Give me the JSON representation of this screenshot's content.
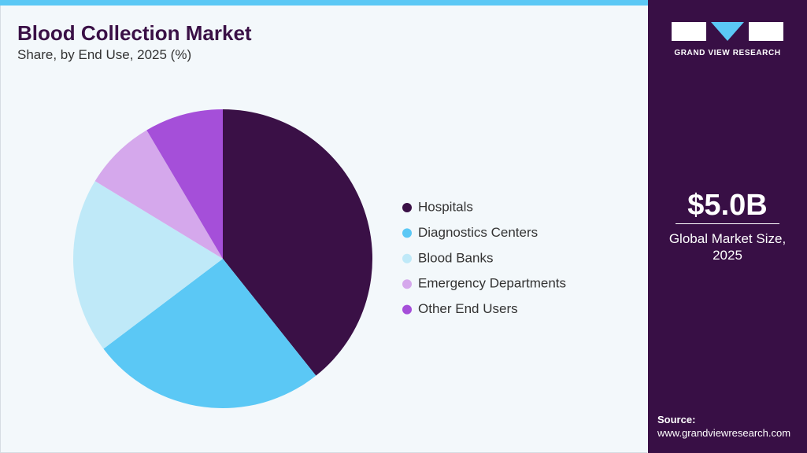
{
  "chart_data": {
    "type": "pie",
    "title": "Blood Collection Market",
    "subtitle": "Share, by End Use, 2025 (%)",
    "categories": [
      "Hospitals",
      "Diagnostics Centers",
      "Blood Banks",
      "Emergency Departments",
      "Other End Users"
    ],
    "values": [
      39.3,
      25.4,
      19.0,
      7.8,
      8.5
    ],
    "colors": [
      "#3a1046",
      "#5bc8f5",
      "#bfe9f8",
      "#d5a8ec",
      "#a54fd9"
    ]
  },
  "sidebar": {
    "brand": "GRAND VIEW RESEARCH",
    "market_size": "$5.0B",
    "market_size_label": "Global Market Size, 2025",
    "source_label": "Source:",
    "source_url": "www.grandviewresearch.com"
  }
}
